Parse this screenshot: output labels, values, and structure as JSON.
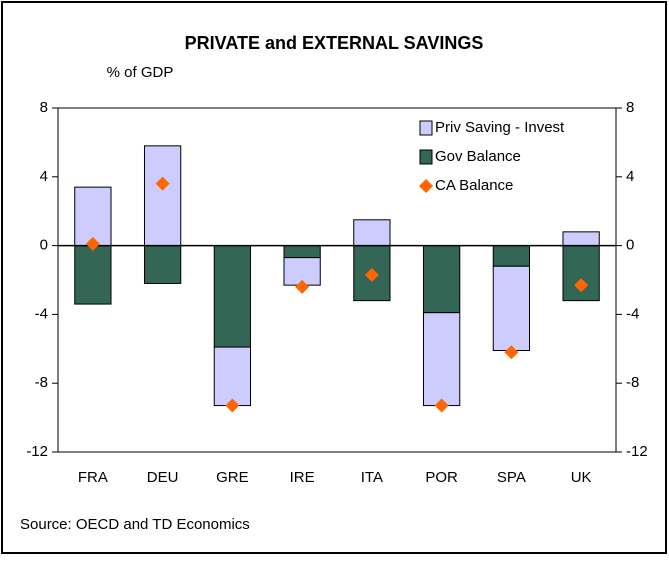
{
  "chart_data": {
    "type": "bar",
    "stacked": true,
    "title": "PRIVATE and EXTERNAL SAVINGS",
    "y_label": "% of GDP",
    "source": "Source: OECD and TD Economics",
    "categories": [
      "FRA",
      "DEU",
      "GRE",
      "IRE",
      "ITA",
      "POR",
      "SPA",
      "UK"
    ],
    "series": [
      {
        "name": "Priv Saving - Invest",
        "color": "#ccccff",
        "kind": "bar",
        "values": [
          3.4,
          5.8,
          -3.4,
          -1.6,
          1.5,
          -5.4,
          -4.9,
          0.8
        ]
      },
      {
        "name": "Gov Balance",
        "color": "#336655",
        "kind": "bar",
        "values": [
          -3.4,
          -2.2,
          -5.9,
          -0.7,
          -3.2,
          -3.9,
          -1.2,
          -3.2
        ]
      },
      {
        "name": "CA Balance",
        "color": "#ff6600",
        "kind": "marker",
        "values": [
          0.1,
          3.6,
          -9.3,
          -2.4,
          -1.7,
          -9.3,
          -6.2,
          -2.3
        ]
      }
    ],
    "ylim": [
      -12,
      8
    ],
    "yticks": [
      -12,
      -8,
      -4,
      0,
      4,
      8
    ],
    "y2lim": [
      -12,
      8
    ],
    "y2ticks": [
      -12,
      -8,
      -4,
      0,
      4,
      8
    ],
    "legend": "upper right",
    "grid": false
  }
}
